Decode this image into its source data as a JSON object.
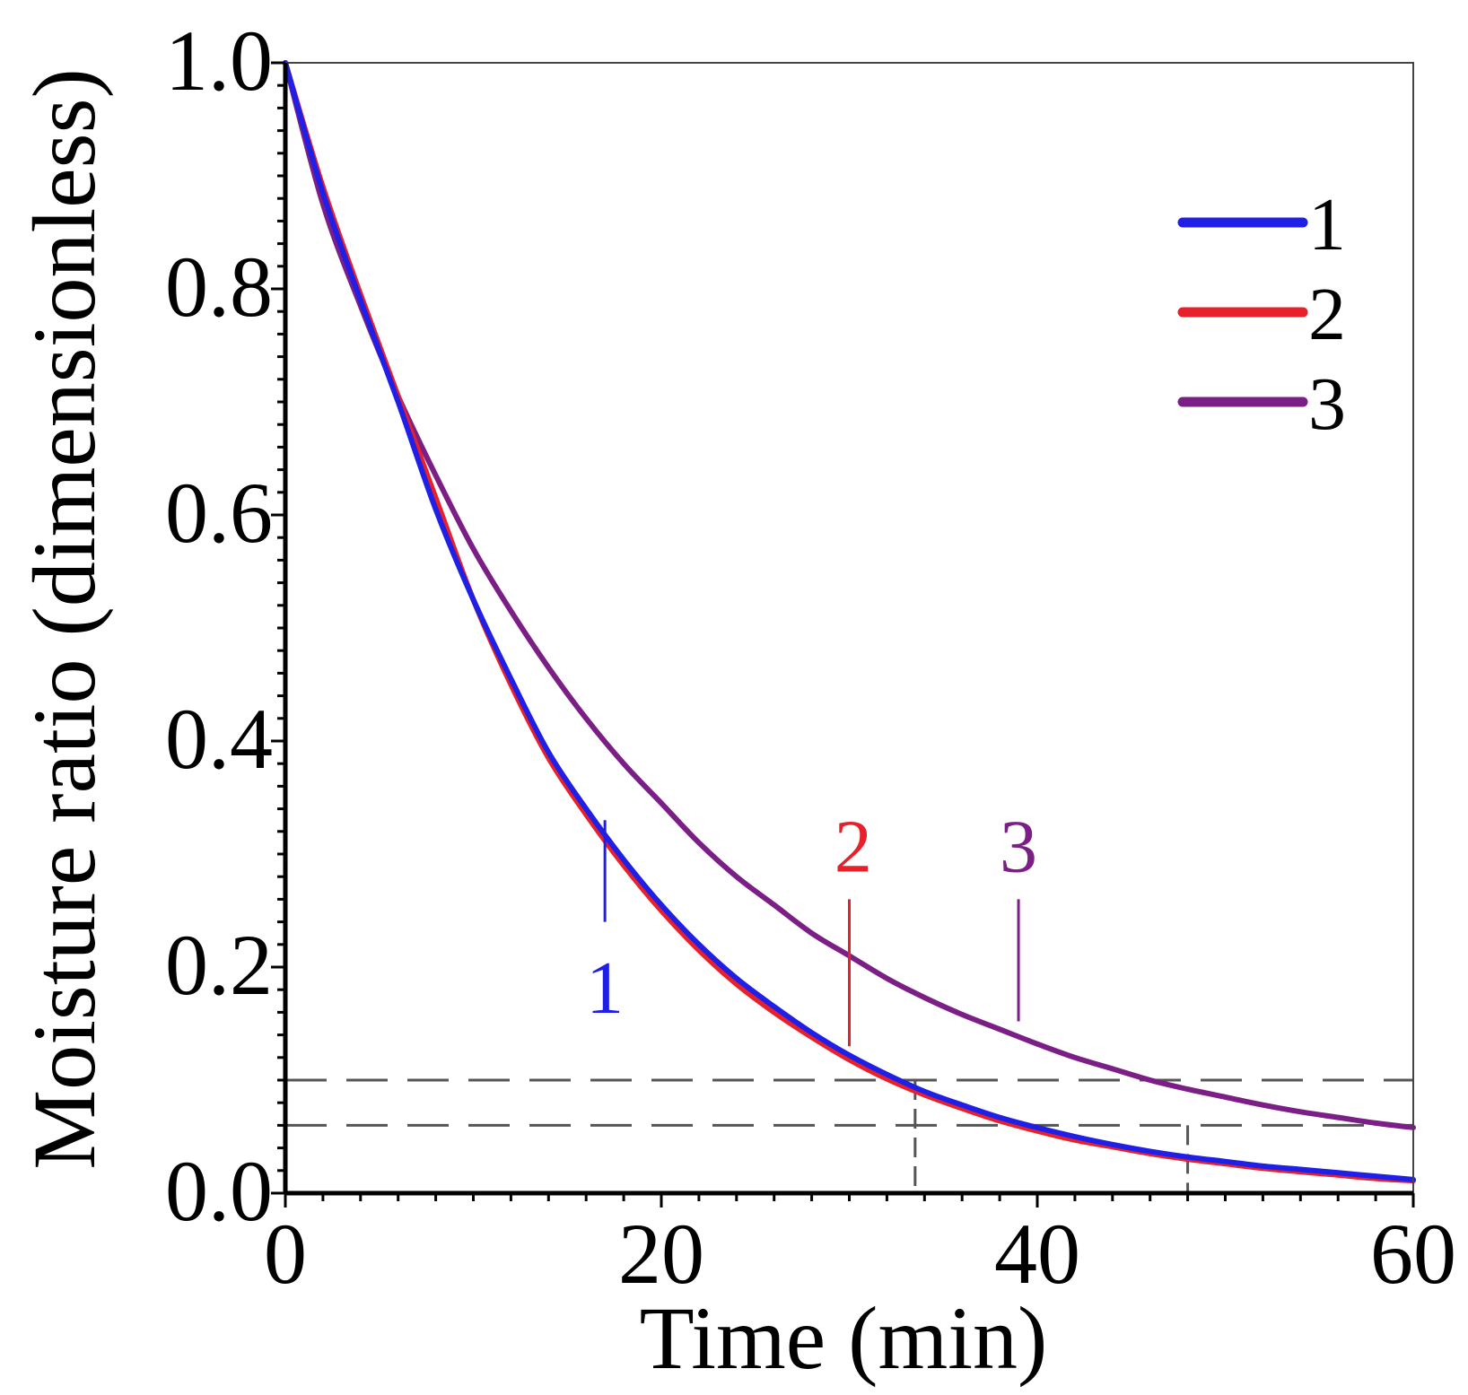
{
  "chart_data": {
    "type": "line",
    "title": "",
    "xlabel": "Time (min)",
    "ylabel": "Moisture ratio (dimensionless)",
    "xlim": [
      0,
      60
    ],
    "ylim": [
      0,
      1.0
    ],
    "x_ticks": [
      0,
      20,
      40,
      60
    ],
    "x_tick_labels": [
      "0",
      "20",
      "40",
      "60"
    ],
    "y_ticks": [
      0,
      0.2,
      0.4,
      0.6,
      0.8,
      1.0
    ],
    "y_tick_labels": [
      "0.0",
      "0.2",
      "0.4",
      "0.6",
      "0.8",
      "1.0"
    ],
    "legend_position": "top-right",
    "x": [
      0,
      2,
      4,
      6,
      8,
      10,
      12,
      14,
      16,
      18,
      20,
      22,
      24,
      26,
      28,
      30,
      32,
      34,
      36,
      38,
      40,
      42,
      44,
      46,
      48,
      50,
      52,
      54,
      56,
      58,
      60
    ],
    "series": [
      {
        "name": "1",
        "color": "#1f1fe6",
        "values": [
          1.0,
          0.885,
          0.79,
          0.7,
          0.605,
          0.525,
          0.455,
          0.39,
          0.34,
          0.295,
          0.255,
          0.22,
          0.19,
          0.165,
          0.142,
          0.122,
          0.105,
          0.09,
          0.078,
          0.067,
          0.058,
          0.05,
          0.043,
          0.037,
          0.032,
          0.028,
          0.024,
          0.021,
          0.018,
          0.015,
          0.012
        ]
      },
      {
        "name": "2",
        "color": "#e8202a",
        "values": [
          1.0,
          0.89,
          0.795,
          0.705,
          0.615,
          0.525,
          0.45,
          0.385,
          0.335,
          0.29,
          0.25,
          0.215,
          0.185,
          0.16,
          0.138,
          0.118,
          0.101,
          0.087,
          0.075,
          0.064,
          0.055,
          0.047,
          0.041,
          0.035,
          0.03,
          0.026,
          0.022,
          0.019,
          0.016,
          0.013,
          0.011
        ]
      },
      {
        "name": "3",
        "color": "#7b1f86",
        "values": [
          1.0,
          0.875,
          0.785,
          0.705,
          0.635,
          0.57,
          0.515,
          0.465,
          0.42,
          0.38,
          0.345,
          0.31,
          0.28,
          0.255,
          0.23,
          0.21,
          0.19,
          0.173,
          0.158,
          0.145,
          0.132,
          0.12,
          0.11,
          0.1,
          0.092,
          0.085,
          0.078,
          0.072,
          0.067,
          0.062,
          0.058
        ]
      }
    ],
    "annotations": [
      {
        "text": "1",
        "color": "#1f1fe6",
        "line_x": 17,
        "line_y_top": 0.33,
        "line_y_bottom": 0.24,
        "label_x": 17,
        "label_y": 0.175
      },
      {
        "text": "2",
        "color": "#e8202a",
        "line_x": 30,
        "line_y_top": 0.26,
        "line_y_bottom": 0.13,
        "label_x": 30.2,
        "label_y": 0.3
      },
      {
        "text": "3",
        "color": "#7b1f86",
        "line_x": 39,
        "line_y_top": 0.26,
        "line_y_bottom": 0.152,
        "label_x": 39,
        "label_y": 0.3
      }
    ],
    "reference_lines": {
      "horizontal": [
        0.1,
        0.06
      ],
      "vertical": [
        {
          "x": 33.5,
          "y_top": 0.1
        },
        {
          "x": 48,
          "y_top": 0.06
        }
      ],
      "color": "#555555"
    }
  }
}
